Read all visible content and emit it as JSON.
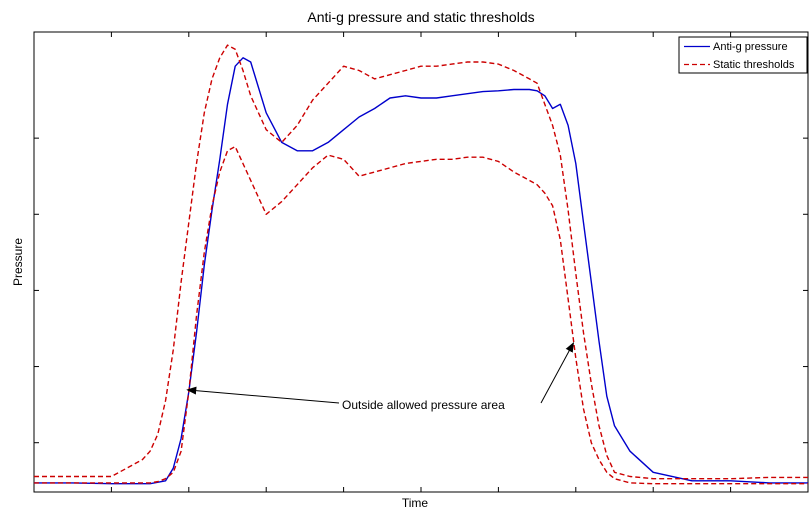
{
  "chart_data": {
    "type": "line",
    "title": "Anti-g pressure and static thresholds",
    "xlabel": "Time",
    "ylabel": "Pressure",
    "xlim": [
      0,
      100
    ],
    "ylim": [
      0,
      100
    ],
    "grid": false,
    "legend_position": "top-right",
    "show_tick_labels": false,
    "x_ticks": [
      10,
      20,
      30,
      40,
      50,
      60,
      70,
      80,
      90
    ],
    "y_ticks": [
      10,
      28,
      46,
      64,
      82
    ],
    "series": [
      {
        "name": "Anti-g pressure",
        "color": "#0000cc",
        "dash": "solid",
        "x": [
          0,
          5,
          10,
          15,
          17,
          18,
          19,
          20,
          21,
          22,
          23,
          24,
          25,
          26,
          27,
          28,
          30,
          32,
          34,
          36,
          38,
          40,
          42,
          44,
          46,
          48,
          50,
          52,
          54,
          56,
          58,
          60,
          62,
          64,
          65,
          66,
          67,
          68,
          69,
          70,
          71,
          72,
          73,
          74,
          75,
          77,
          80,
          85,
          90,
          95,
          100
        ],
        "y": [
          0.5,
          0.5,
          0.3,
          0.3,
          1,
          4,
          11,
          22,
          36,
          52,
          65,
          77,
          90,
          99,
          101,
          100,
          88,
          81,
          79,
          79,
          81,
          84,
          87,
          89,
          91.5,
          92,
          91.5,
          91.5,
          92,
          92.5,
          93,
          93.2,
          93.5,
          93.5,
          93.2,
          92,
          89,
          90,
          85,
          76,
          62,
          48,
          34,
          21,
          14,
          8,
          3,
          1,
          1,
          0.5,
          0.5
        ]
      },
      {
        "name": "Static thresholds",
        "color": "#cc0000",
        "dash": "dashed",
        "x": [
          0,
          5,
          10,
          11,
          12,
          14,
          15,
          16,
          17,
          18,
          19,
          20,
          21,
          22,
          23,
          24,
          25,
          26,
          27,
          28,
          30,
          32,
          34,
          36,
          38,
          40,
          42,
          44,
          46,
          48,
          50,
          52,
          54,
          56,
          58,
          60,
          62,
          64,
          65,
          66,
          67,
          68,
          69,
          70,
          71,
          72,
          73,
          74,
          75,
          77,
          80,
          85,
          90,
          95,
          100
        ],
        "y": [
          2,
          2,
          2,
          3,
          4,
          6,
          8,
          12,
          20,
          32,
          48,
          62,
          76,
          88,
          96,
          101,
          104,
          103,
          98,
          92,
          84,
          81,
          85,
          91,
          95,
          99,
          98,
          96,
          97,
          98,
          99,
          99,
          99.5,
          100,
          100,
          99.5,
          98,
          96,
          95,
          90,
          85,
          78,
          65,
          50,
          36,
          24,
          14,
          7,
          3,
          2,
          1.5,
          1.5,
          1.5,
          1.8,
          1.8
        ]
      },
      {
        "name": "",
        "color": "#cc0000",
        "dash": "dashed",
        "x": [
          0,
          5,
          10,
          14,
          15,
          16,
          17,
          18,
          19,
          20,
          21,
          22,
          23,
          24,
          25,
          26,
          28,
          30,
          32,
          34,
          36,
          38,
          40,
          42,
          44,
          46,
          48,
          50,
          52,
          54,
          56,
          58,
          60,
          62,
          64,
          65,
          66,
          67,
          68,
          69,
          70,
          71,
          72,
          73,
          74,
          75,
          77,
          80,
          85,
          90,
          95,
          100
        ],
        "y": [
          0.5,
          0.5,
          0.5,
          0.5,
          0.5,
          0.8,
          1.5,
          3,
          8,
          22,
          40,
          55,
          66,
          74,
          79,
          80,
          72,
          64,
          67,
          71,
          75,
          78,
          77,
          73,
          74,
          75,
          76,
          76.5,
          77,
          77,
          77.5,
          77.5,
          76.5,
          74,
          72,
          71,
          69,
          66,
          58,
          44,
          30,
          18,
          10,
          6,
          3,
          1.5,
          0.5,
          0.3,
          0.3,
          0.3,
          0.3,
          0.3
        ]
      }
    ],
    "annotation": {
      "text": "Outside allowed pressure area",
      "targets": [
        [
          19.8,
          22.5
        ],
        [
          69.7,
          33.6
        ]
      ]
    }
  }
}
